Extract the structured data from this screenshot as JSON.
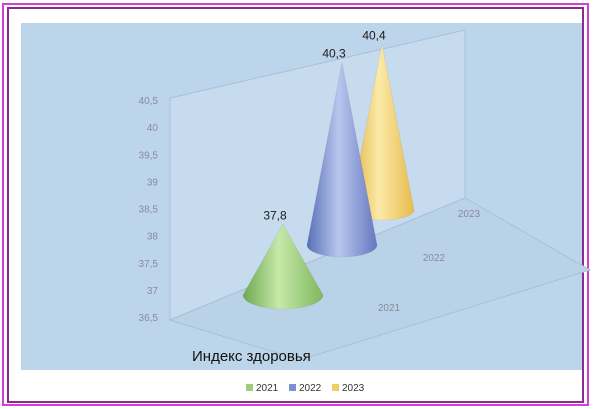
{
  "chart_data": {
    "type": "bar",
    "style": "3d-cone",
    "title": "Индекс здоровья",
    "categories": [
      "2021",
      "2022",
      "2023"
    ],
    "series": [
      {
        "name": "2021",
        "value": 37.8,
        "label": "37,8",
        "color": "#9bcf7a"
      },
      {
        "name": "2022",
        "value": 40.3,
        "label": "40,3",
        "color": "#7b8fd1"
      },
      {
        "name": "2023",
        "value": 40.4,
        "label": "40,4",
        "color": "#f2cd62"
      }
    ],
    "y_ticks": [
      "36,5",
      "37",
      "37,5",
      "38",
      "38,5",
      "39",
      "39,5",
      "40",
      "40,5"
    ],
    "ylim": [
      36.5,
      40.5
    ],
    "depth_labels": [
      "2021",
      "2022",
      "2023"
    ],
    "legend": {
      "placement": "bottom",
      "items": [
        "2021",
        "2022",
        "2023"
      ]
    },
    "plot_background": "#bdd5ea",
    "frame_color": "#d63dd6"
  }
}
